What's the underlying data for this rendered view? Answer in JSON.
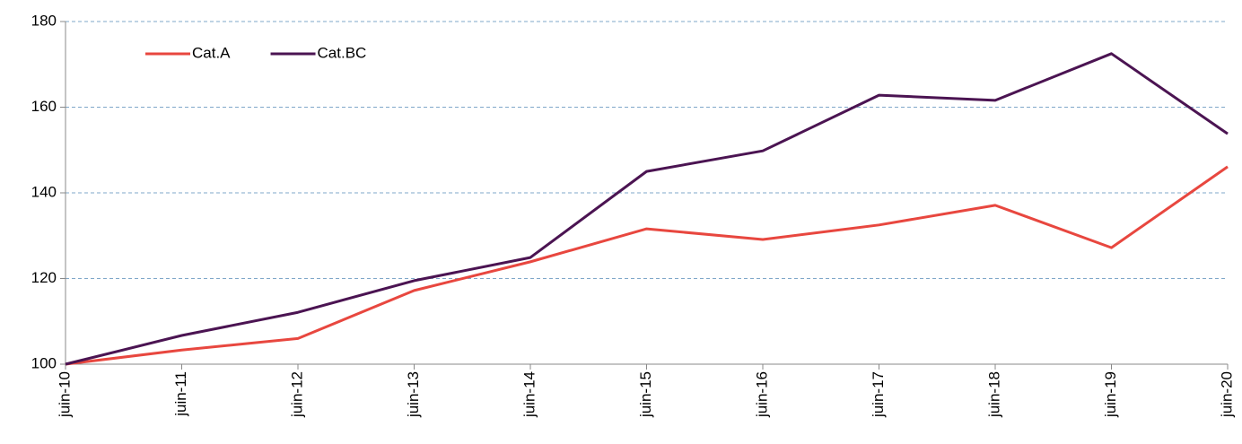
{
  "chart_data": {
    "type": "line",
    "categories": [
      "juin-10",
      "juin-11",
      "juin-12",
      "juin-13",
      "juin-14",
      "juin-15",
      "juin-16",
      "juin-17",
      "juin-18",
      "juin-19",
      "juin-20"
    ],
    "series": [
      {
        "name": "Cat.A",
        "color": "#e8473f",
        "values": [
          100,
          103.3,
          106,
          117.2,
          123.9,
          131.6,
          129.1,
          132.5,
          137.1,
          127.2,
          146.1
        ]
      },
      {
        "name": "Cat.BC",
        "color": "#4b1452",
        "values": [
          100,
          106.7,
          112.1,
          119.5,
          124.9,
          145,
          149.8,
          162.8,
          161.6,
          172.5,
          153.8
        ]
      }
    ],
    "ylim": [
      100,
      180
    ],
    "yticks": [
      100,
      120,
      140,
      160,
      180
    ],
    "grid": true,
    "legend": "top-left"
  }
}
